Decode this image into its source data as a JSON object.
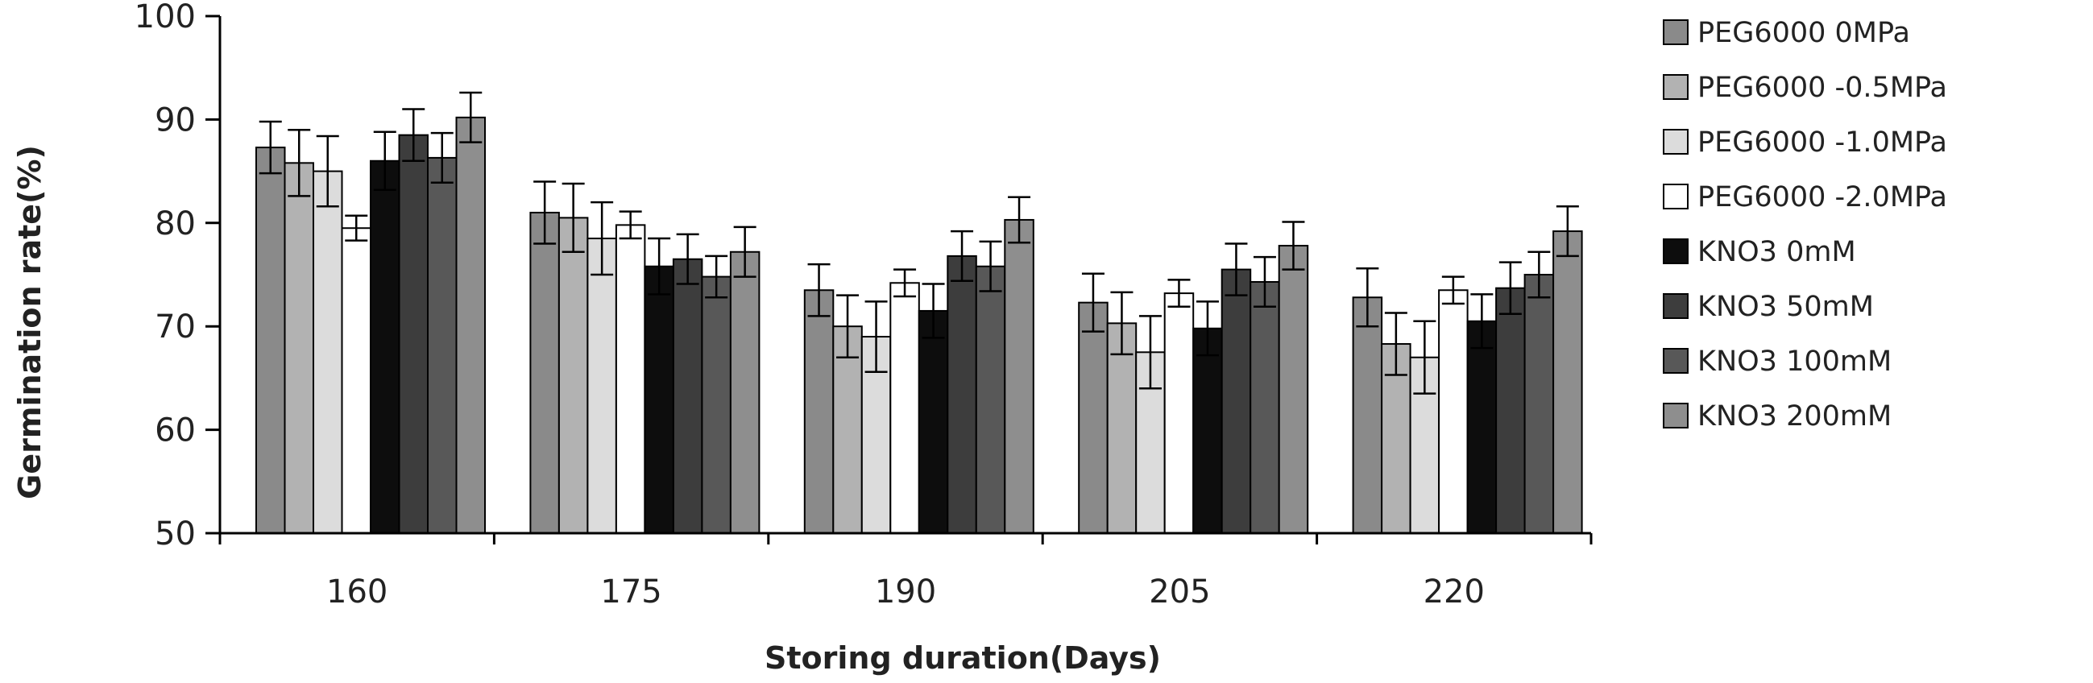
{
  "chart_data": {
    "type": "bar",
    "title": "",
    "xlabel": "Storing duration(Days)",
    "ylabel": "Germination rate(%)",
    "ylim": [
      50,
      100
    ],
    "yticks": [
      50,
      60,
      70,
      80,
      90,
      100
    ],
    "categories": [
      "160",
      "175",
      "190",
      "205",
      "220"
    ],
    "grid": false,
    "legend_position": "right",
    "series": [
      {
        "name": "PEG6000 0MPa",
        "color": "#8a8a8a",
        "values": [
          87.3,
          81.0,
          73.5,
          72.3,
          72.8
        ],
        "errors": [
          2.5,
          3.0,
          2.5,
          2.8,
          2.8
        ]
      },
      {
        "name": "PEG6000 -0.5MPa",
        "color": "#b2b2b2",
        "values": [
          85.8,
          80.5,
          70.0,
          70.3,
          68.3
        ],
        "errors": [
          3.2,
          3.3,
          3.0,
          3.0,
          3.0
        ]
      },
      {
        "name": "PEG6000 -1.0MPa",
        "color": "#dcdcdc",
        "values": [
          85.0,
          78.5,
          69.0,
          67.5,
          67.0
        ],
        "errors": [
          3.4,
          3.5,
          3.4,
          3.5,
          3.5
        ]
      },
      {
        "name": "PEG6000 -2.0MPa",
        "color": "#ffffff",
        "values": [
          79.5,
          79.8,
          74.2,
          73.2,
          73.5
        ],
        "errors": [
          1.2,
          1.3,
          1.3,
          1.3,
          1.3
        ]
      },
      {
        "name": "KNO3 0mM",
        "color": "#0d0d0d",
        "values": [
          86.0,
          75.8,
          71.5,
          69.8,
          70.5
        ],
        "errors": [
          2.8,
          2.7,
          2.6,
          2.6,
          2.6
        ]
      },
      {
        "name": "KNO3 50mM",
        "color": "#3d3d3d",
        "values": [
          88.5,
          76.5,
          76.8,
          75.5,
          73.7
        ],
        "errors": [
          2.5,
          2.4,
          2.4,
          2.5,
          2.5
        ]
      },
      {
        "name": "KNO3 100mM",
        "color": "#585858",
        "values": [
          86.3,
          74.8,
          75.8,
          74.3,
          75.0
        ],
        "errors": [
          2.4,
          2.0,
          2.4,
          2.4,
          2.2
        ]
      },
      {
        "name": "KNO3 200mM",
        "color": "#8e8e8e",
        "values": [
          90.2,
          77.2,
          80.3,
          77.8,
          79.2
        ],
        "errors": [
          2.4,
          2.4,
          2.2,
          2.3,
          2.4
        ]
      }
    ]
  }
}
